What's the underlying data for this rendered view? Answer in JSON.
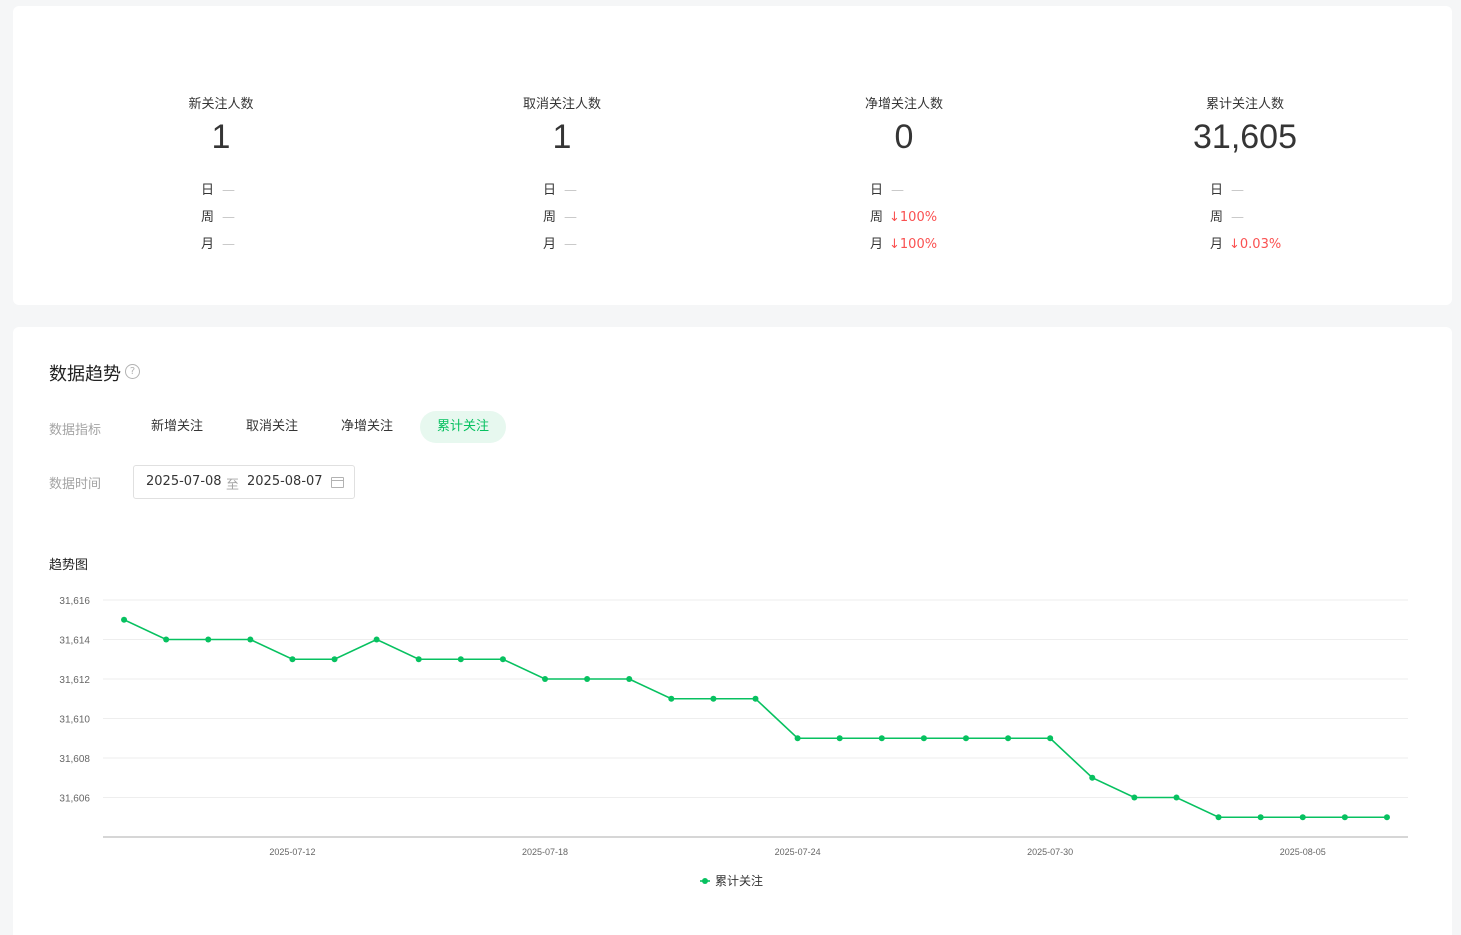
{
  "summary": [
    {
      "title": "新关注人数",
      "value": "1",
      "rows": [
        {
          "label": "日",
          "change": "—",
          "down": false
        },
        {
          "label": "周",
          "change": "—",
          "down": false
        },
        {
          "label": "月",
          "change": "—",
          "down": false
        }
      ]
    },
    {
      "title": "取消关注人数",
      "value": "1",
      "rows": [
        {
          "label": "日",
          "change": "—",
          "down": false
        },
        {
          "label": "周",
          "change": "—",
          "down": false
        },
        {
          "label": "月",
          "change": "—",
          "down": false
        }
      ]
    },
    {
      "title": "净增关注人数",
      "value": "0",
      "rows": [
        {
          "label": "日",
          "change": "—",
          "down": false
        },
        {
          "label": "周",
          "change": "↓100%",
          "down": true
        },
        {
          "label": "月",
          "change": "↓100%",
          "down": true
        }
      ]
    },
    {
      "title": "累计关注人数",
      "value": "31,605",
      "rows": [
        {
          "label": "日",
          "change": "—",
          "down": false
        },
        {
          "label": "周",
          "change": "—",
          "down": false
        },
        {
          "label": "月",
          "change": "↓0.03%",
          "down": true
        }
      ]
    }
  ],
  "trend": {
    "title": "数据趋势",
    "help_icon": "?",
    "metric_label": "数据指标",
    "metrics": [
      "新增关注",
      "取消关注",
      "净增关注",
      "累计关注"
    ],
    "active_metric": "累计关注",
    "time_label": "数据时间",
    "date_start": "2025-07-08",
    "date_sep": "至",
    "date_end": "2025-08-07",
    "chart_title": "趋势图"
  },
  "colors": {
    "accent": "#07c160",
    "down": "#fa5151"
  },
  "chart_data": {
    "type": "line",
    "title": "",
    "xlabel": "",
    "ylabel": "",
    "x": [
      "2025-07-08",
      "2025-07-09",
      "2025-07-10",
      "2025-07-11",
      "2025-07-12",
      "2025-07-13",
      "2025-07-14",
      "2025-07-15",
      "2025-07-16",
      "2025-07-17",
      "2025-07-18",
      "2025-07-19",
      "2025-07-20",
      "2025-07-21",
      "2025-07-22",
      "2025-07-23",
      "2025-07-24",
      "2025-07-25",
      "2025-07-26",
      "2025-07-27",
      "2025-07-28",
      "2025-07-29",
      "2025-07-30",
      "2025-07-31",
      "2025-08-01",
      "2025-08-02",
      "2025-08-03",
      "2025-08-04",
      "2025-08-05",
      "2025-08-06",
      "2025-08-07"
    ],
    "x_ticks": [
      "2025-07-12",
      "2025-07-18",
      "2025-07-24",
      "2025-07-30",
      "2025-08-05"
    ],
    "series": [
      {
        "name": "累计关注",
        "values": [
          31615,
          31614,
          31614,
          31614,
          31613,
          31613,
          31614,
          31613,
          31613,
          31613,
          31612,
          31612,
          31612,
          31611,
          31611,
          31611,
          31609,
          31609,
          31609,
          31609,
          31609,
          31609,
          31609,
          31607,
          31606,
          31606,
          31605,
          31605,
          31605,
          31605,
          31605
        ]
      }
    ],
    "y_ticks": [
      "31,606",
      "31,608",
      "31,610",
      "31,612",
      "31,614",
      "31,616"
    ],
    "ylim": [
      31604,
      31616
    ],
    "grid": true,
    "legend": "bottom-center"
  }
}
